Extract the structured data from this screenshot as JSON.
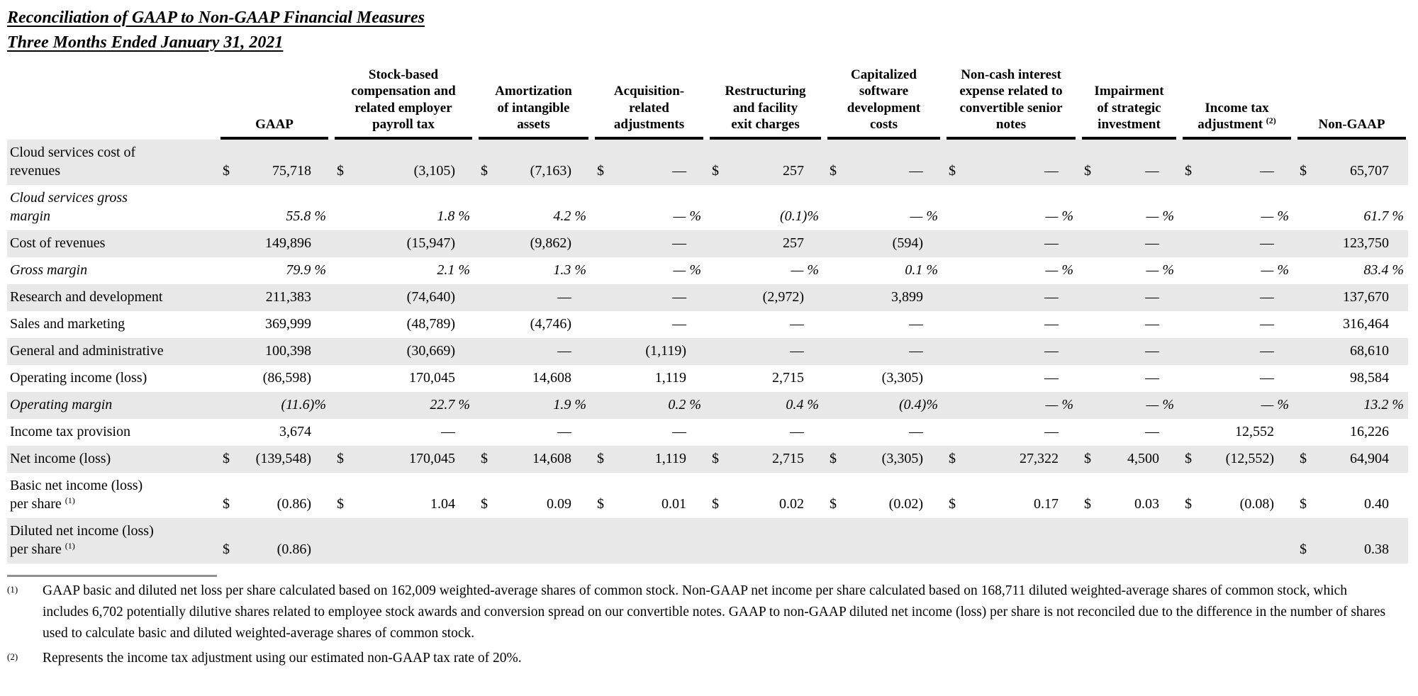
{
  "title": {
    "line1": "Reconciliation of GAAP to Non-GAAP Financial Measures",
    "line2": "Three Months Ended January 31, 2021"
  },
  "table": {
    "columns": [
      {
        "label": "GAAP"
      },
      {
        "label": "Stock-based\ncompensation and\nrelated employer\npayroll tax"
      },
      {
        "label": "Amortization\nof intangible\nassets"
      },
      {
        "label": "Acquisition-\nrelated\nadjustments"
      },
      {
        "label": "Restructuring\nand facility\nexit charges"
      },
      {
        "label": "Capitalized\nsoftware\ndevelopment\ncosts"
      },
      {
        "label": "Non-cash interest\nexpense related to\nconvertible senior\nnotes"
      },
      {
        "label": "Impairment\nof strategic\ninvestment"
      },
      {
        "label": "Income tax\nadjustment",
        "sup": "(2)"
      },
      {
        "label": "Non-GAAP"
      }
    ],
    "rows": [
      {
        "label": "Cloud services cost of\nrevenues",
        "striped": true,
        "italic": false,
        "pct": false,
        "cells": [
          [
            "$",
            "75,718"
          ],
          [
            "$",
            "(3,105)"
          ],
          [
            "$",
            "(7,163)"
          ],
          [
            "$",
            "—"
          ],
          [
            "$",
            "257"
          ],
          [
            "$",
            "—"
          ],
          [
            "$",
            "—"
          ],
          [
            "$",
            "—"
          ],
          [
            "$",
            "—"
          ],
          [
            "$",
            "65,707"
          ]
        ]
      },
      {
        "label": "Cloud services gross\nmargin",
        "striped": false,
        "italic": true,
        "pct": true,
        "cells": [
          [
            "",
            "55.8 %"
          ],
          [
            "",
            "1.8 %"
          ],
          [
            "",
            "4.2 %"
          ],
          [
            "",
            "— %"
          ],
          [
            "",
            "(0.1)%"
          ],
          [
            "",
            "— %"
          ],
          [
            "",
            "— %"
          ],
          [
            "",
            "— %"
          ],
          [
            "",
            "— %"
          ],
          [
            "",
            "61.7 %"
          ]
        ]
      },
      {
        "label": "Cost of revenues",
        "striped": true,
        "italic": false,
        "pct": false,
        "cells": [
          [
            "",
            "149,896"
          ],
          [
            "",
            "(15,947)"
          ],
          [
            "",
            "(9,862)"
          ],
          [
            "",
            "—"
          ],
          [
            "",
            "257"
          ],
          [
            "",
            "(594)"
          ],
          [
            "",
            "—"
          ],
          [
            "",
            "—"
          ],
          [
            "",
            "—"
          ],
          [
            "",
            "123,750"
          ]
        ]
      },
      {
        "label": "Gross margin",
        "striped": false,
        "italic": true,
        "pct": true,
        "cells": [
          [
            "",
            "79.9 %"
          ],
          [
            "",
            "2.1 %"
          ],
          [
            "",
            "1.3 %"
          ],
          [
            "",
            "— %"
          ],
          [
            "",
            "— %"
          ],
          [
            "",
            "0.1 %"
          ],
          [
            "",
            "— %"
          ],
          [
            "",
            "— %"
          ],
          [
            "",
            "— %"
          ],
          [
            "",
            "83.4 %"
          ]
        ]
      },
      {
        "label": "Research and development",
        "striped": true,
        "italic": false,
        "pct": false,
        "cells": [
          [
            "",
            "211,383"
          ],
          [
            "",
            "(74,640)"
          ],
          [
            "",
            "—"
          ],
          [
            "",
            "—"
          ],
          [
            "",
            "(2,972)"
          ],
          [
            "",
            "3,899"
          ],
          [
            "",
            "—"
          ],
          [
            "",
            "—"
          ],
          [
            "",
            "—"
          ],
          [
            "",
            "137,670"
          ]
        ]
      },
      {
        "label": "Sales and marketing",
        "striped": false,
        "italic": false,
        "pct": false,
        "cells": [
          [
            "",
            "369,999"
          ],
          [
            "",
            "(48,789)"
          ],
          [
            "",
            "(4,746)"
          ],
          [
            "",
            "—"
          ],
          [
            "",
            "—"
          ],
          [
            "",
            "—"
          ],
          [
            "",
            "—"
          ],
          [
            "",
            "—"
          ],
          [
            "",
            "—"
          ],
          [
            "",
            "316,464"
          ]
        ]
      },
      {
        "label": "General and administrative",
        "striped": true,
        "italic": false,
        "pct": false,
        "cells": [
          [
            "",
            "100,398"
          ],
          [
            "",
            "(30,669)"
          ],
          [
            "",
            "—"
          ],
          [
            "",
            "(1,119)"
          ],
          [
            "",
            "—"
          ],
          [
            "",
            "—"
          ],
          [
            "",
            "—"
          ],
          [
            "",
            "—"
          ],
          [
            "",
            "—"
          ],
          [
            "",
            "68,610"
          ]
        ]
      },
      {
        "label": "Operating income (loss)",
        "striped": false,
        "italic": false,
        "pct": false,
        "cells": [
          [
            "",
            "(86,598)"
          ],
          [
            "",
            "170,045"
          ],
          [
            "",
            "14,608"
          ],
          [
            "",
            "1,119"
          ],
          [
            "",
            "2,715"
          ],
          [
            "",
            "(3,305)"
          ],
          [
            "",
            "—"
          ],
          [
            "",
            "—"
          ],
          [
            "",
            "—"
          ],
          [
            "",
            "98,584"
          ]
        ]
      },
      {
        "label": "Operating margin",
        "striped": true,
        "italic": true,
        "pct": true,
        "cells": [
          [
            "",
            "(11.6)%"
          ],
          [
            "",
            "22.7 %"
          ],
          [
            "",
            "1.9 %"
          ],
          [
            "",
            "0.2 %"
          ],
          [
            "",
            "0.4 %"
          ],
          [
            "",
            "(0.4)%"
          ],
          [
            "",
            "— %"
          ],
          [
            "",
            "— %"
          ],
          [
            "",
            "— %"
          ],
          [
            "",
            "13.2 %"
          ]
        ]
      },
      {
        "label": "Income tax provision",
        "striped": false,
        "italic": false,
        "pct": false,
        "cells": [
          [
            "",
            "3,674"
          ],
          [
            "",
            "—"
          ],
          [
            "",
            "—"
          ],
          [
            "",
            "—"
          ],
          [
            "",
            "—"
          ],
          [
            "",
            "—"
          ],
          [
            "",
            "—"
          ],
          [
            "",
            "—"
          ],
          [
            "",
            "12,552"
          ],
          [
            "",
            "16,226"
          ]
        ]
      },
      {
        "label": "Net income (loss)",
        "striped": true,
        "italic": false,
        "pct": false,
        "cells": [
          [
            "$",
            "(139,548)"
          ],
          [
            "$",
            "170,045"
          ],
          [
            "$",
            "14,608"
          ],
          [
            "$",
            "1,119"
          ],
          [
            "$",
            "2,715"
          ],
          [
            "$",
            "(3,305)"
          ],
          [
            "$",
            "27,322"
          ],
          [
            "$",
            "4,500"
          ],
          [
            "$",
            "(12,552)"
          ],
          [
            "$",
            "64,904"
          ]
        ]
      },
      {
        "label": "Basic net income (loss)\nper share",
        "sup": "(1)",
        "striped": false,
        "italic": false,
        "pct": false,
        "cells": [
          [
            "$",
            "(0.86)"
          ],
          [
            "$",
            "1.04"
          ],
          [
            "$",
            "0.09"
          ],
          [
            "$",
            "0.01"
          ],
          [
            "$",
            "0.02"
          ],
          [
            "$",
            "(0.02)"
          ],
          [
            "$",
            "0.17"
          ],
          [
            "$",
            "0.03"
          ],
          [
            "$",
            "(0.08)"
          ],
          [
            "$",
            "0.40"
          ]
        ]
      },
      {
        "label": "Diluted net income (loss)\nper share",
        "sup": "(1)",
        "striped": true,
        "italic": false,
        "pct": false,
        "cells": [
          [
            "$",
            "(0.86)"
          ],
          [
            "",
            ""
          ],
          [
            "",
            ""
          ],
          [
            "",
            ""
          ],
          [
            "",
            ""
          ],
          [
            "",
            ""
          ],
          [
            "",
            ""
          ],
          [
            "",
            ""
          ],
          [
            "",
            ""
          ],
          [
            "$",
            "0.38"
          ]
        ]
      }
    ]
  },
  "footnotes": [
    {
      "marker": "(1)",
      "text": "GAAP basic and diluted net loss per share calculated based on 162,009 weighted-average shares of common stock. Non-GAAP net income per share calculated based on 168,711 diluted weighted-average shares of common stock, which includes 6,702 potentially dilutive shares related to employee stock awards and conversion spread on our convertible notes. GAAP to non-GAAP diluted net income (loss) per share is not reconciled due to the difference in the number of shares used to calculate basic and diluted weighted-average shares of common stock."
    },
    {
      "marker": "(2)",
      "text": "Represents the income tax adjustment using our estimated non-GAAP tax rate of 20%."
    }
  ]
}
